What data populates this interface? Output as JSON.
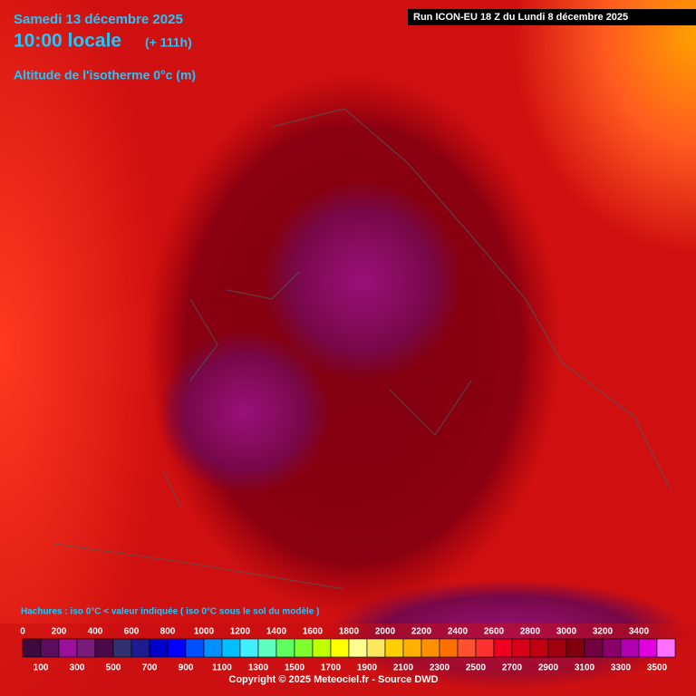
{
  "header": {
    "date": "Samedi 13 décembre 2025",
    "time": "10:00 locale",
    "lead": "(+ 111h)",
    "field": "Altitude de l'isotherme 0°c (m)",
    "run": "Run ICON-EU 18 Z du Lundi 8 décembre 2025"
  },
  "legend": {
    "note": "Hachures : iso 0°C < valeur indiquée ( iso 0°C sous le sol du modèle )",
    "top_labels": [
      0,
      200,
      400,
      600,
      800,
      1000,
      1200,
      1400,
      1600,
      1800,
      2000,
      2200,
      2400,
      2600,
      2800,
      3000,
      3200,
      3400
    ],
    "bottom_labels": [
      100,
      300,
      500,
      700,
      900,
      1100,
      1300,
      1500,
      1700,
      1900,
      2100,
      2300,
      2500,
      2700,
      2900,
      3100,
      3300,
      3500
    ],
    "colors": [
      "#3c0a3c",
      "#5c0c5c",
      "#9a109a",
      "#7a1a7a",
      "#4a0a4a",
      "#30306e",
      "#1c1c90",
      "#0000c8",
      "#0000ff",
      "#0050ff",
      "#0090ff",
      "#00c0ff",
      "#40f0ff",
      "#60ffc0",
      "#60ff60",
      "#80ff30",
      "#c0ff00",
      "#ffff00",
      "#ffff90",
      "#ffe860",
      "#ffd000",
      "#ffb000",
      "#ff9000",
      "#ff7000",
      "#ff5030",
      "#ff3030",
      "#f00020",
      "#d80018",
      "#c00010",
      "#a00010",
      "#800010",
      "#700040",
      "#880068",
      "#b000b0",
      "#e000e0",
      "#ff70ff"
    ]
  },
  "footer": {
    "copyright": "Copyright © 2025 Meteociel.fr - Source DWD"
  }
}
